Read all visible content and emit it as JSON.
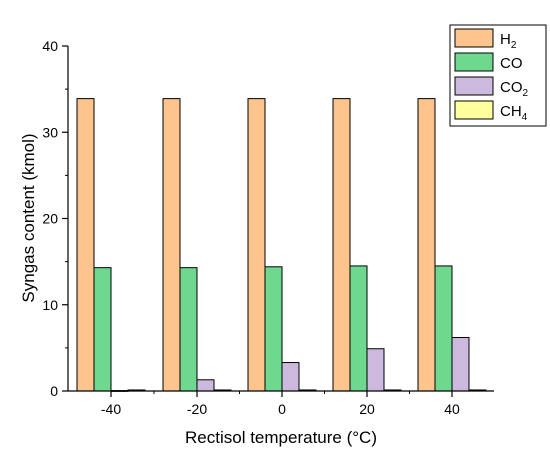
{
  "chart_data": {
    "type": "bar",
    "categories": [
      "-40",
      "-20",
      "0",
      "20",
      "40"
    ],
    "xlabel": "Rectisol temperature (°C)",
    "ylabel": "Syngas content (kmol)",
    "ylim": [
      0,
      40
    ],
    "yticks": [
      "0",
      "10",
      "20",
      "30",
      "40"
    ],
    "grid": false,
    "legend_position": "top-right",
    "series": [
      {
        "name": "H2",
        "name_main": "H",
        "name_sub": "2",
        "color": "#FDC48E",
        "values": [
          33.9,
          33.9,
          33.9,
          33.9,
          33.9
        ]
      },
      {
        "name": "CO",
        "name_main": "CO",
        "name_sub": "",
        "color": "#6FD88F",
        "values": [
          14.3,
          14.3,
          14.4,
          14.5,
          14.5
        ]
      },
      {
        "name": "CO2",
        "name_main": "CO",
        "name_sub": "2",
        "color": "#CDB9DE",
        "values": [
          0.05,
          1.3,
          3.3,
          4.9,
          6.2
        ]
      },
      {
        "name": "CH4",
        "name_main": "CH",
        "name_sub": "4",
        "color": "#FFFF9E",
        "values": [
          0.12,
          0.12,
          0.12,
          0.12,
          0.12
        ]
      }
    ]
  }
}
